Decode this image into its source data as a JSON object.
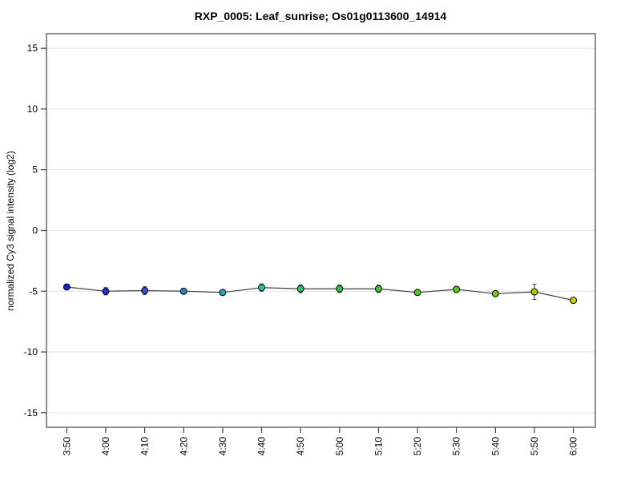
{
  "chart_data": {
    "type": "line",
    "title": "RXP_0005: Leaf_sunrise; Os01g0113600_14914",
    "ylabel": "normalized Cy3 signal intensity (log2)",
    "xlabel": "",
    "categories": [
      "3:50",
      "4:00",
      "4:10",
      "4:20",
      "4:30",
      "4:40",
      "4:50",
      "5:00",
      "5:10",
      "5:20",
      "5:30",
      "5:40",
      "5:50",
      "6:00"
    ],
    "values": [
      -4.65,
      -5.0,
      -4.95,
      -5.0,
      -5.1,
      -4.7,
      -4.8,
      -4.8,
      -4.8,
      -5.1,
      -4.85,
      -5.2,
      -5.05,
      -5.75
    ],
    "errors": [
      0.12,
      0.3,
      0.32,
      0.18,
      0.15,
      0.3,
      0.32,
      0.3,
      0.3,
      0.15,
      0.25,
      0.18,
      0.62,
      0.15
    ],
    "point_colors": [
      "#1c1ccd",
      "#2233d4",
      "#2a52d8",
      "#2b7fd0",
      "#26a0c4",
      "#2fc2aa",
      "#2cc46c",
      "#33c44c",
      "#3ec636",
      "#49c72b",
      "#58c922",
      "#6fcb11",
      "#a9cb08",
      "#cdcd00"
    ],
    "yticks": [
      -15,
      -10,
      -5,
      0,
      5,
      10,
      15
    ],
    "ylim": [
      -16.2,
      16.2
    ],
    "legend": "none",
    "grid": "horizontal light gridlines at y ticks",
    "line_color": "#444444",
    "axis_color": "#444444",
    "grid_color": "#e4e4e4",
    "marker_outline": "#000000",
    "background": "#ffffff"
  }
}
